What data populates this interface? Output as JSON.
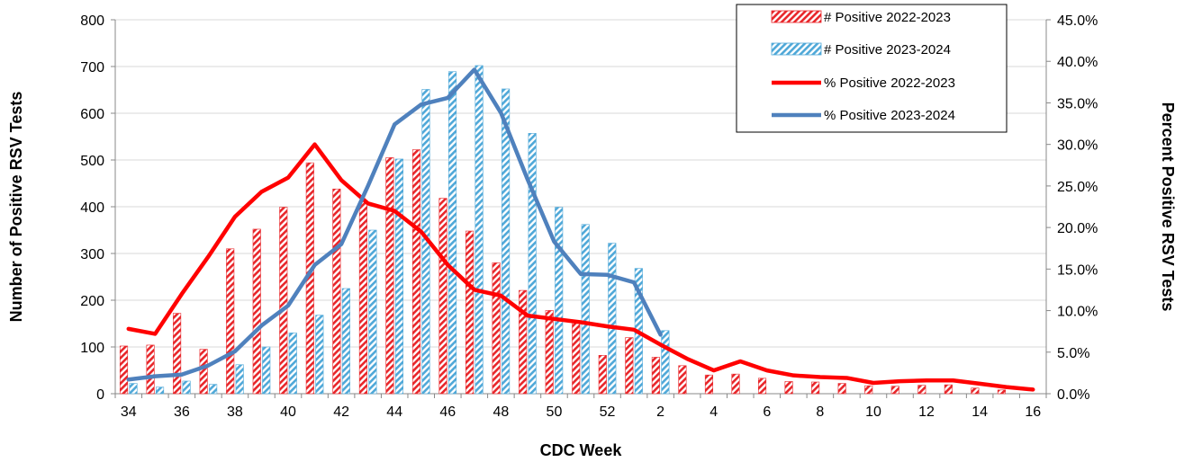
{
  "chart_data": {
    "type": "bar",
    "xlabel": "CDC Week",
    "ylabel": "Number of Positive RSV Tests",
    "y2label": "Percent Positive RSV Tests",
    "ylim": [
      0,
      800
    ],
    "y2lim": [
      0,
      45
    ],
    "y_ticks": [
      "0",
      "100",
      "200",
      "300",
      "400",
      "500",
      "600",
      "700",
      "800"
    ],
    "y2_ticks": [
      "0.0%",
      "5.0%",
      "10.0%",
      "15.0%",
      "20.0%",
      "25.0%",
      "30.0%",
      "35.0%",
      "40.0%",
      "45.0%"
    ],
    "grid": true,
    "legend_position": "top-right",
    "categories": [
      "34",
      "35",
      "36",
      "37",
      "38",
      "39",
      "40",
      "41",
      "42",
      "43",
      "44",
      "45",
      "46",
      "47",
      "48",
      "49",
      "50",
      "51",
      "52",
      "1",
      "2",
      "3",
      "4",
      "5",
      "6",
      "7",
      "8",
      "9",
      "10",
      "11",
      "12",
      "13",
      "14",
      "15",
      "16"
    ],
    "x_tick_labels": [
      "34",
      "",
      "36",
      "",
      "38",
      "",
      "40",
      "",
      "42",
      "",
      "44",
      "",
      "46",
      "",
      "48",
      "",
      "50",
      "",
      "52",
      "",
      "2",
      "",
      "4",
      "",
      "6",
      "",
      "8",
      "",
      "10",
      "",
      "12",
      "",
      "14",
      "",
      "16"
    ],
    "bar_series": [
      {
        "name": "# Positive 2022-2023",
        "color": "#e8262a",
        "values": [
          102,
          104,
          172,
          95,
          310,
          352,
          399,
          494,
          438,
          412,
          505,
          522,
          418,
          348,
          280,
          221,
          178,
          152,
          82,
          120,
          78,
          60,
          40,
          42,
          33,
          26,
          25,
          22,
          17,
          16,
          18,
          19,
          12,
          8,
          null
        ]
      },
      {
        "name": "# Positive 2023-2024",
        "color": "#4fa8d8",
        "values": [
          22,
          14,
          27,
          20,
          62,
          100,
          130,
          168,
          225,
          350,
          502,
          651,
          689,
          702,
          652,
          557,
          399,
          362,
          322,
          268,
          135,
          null,
          null,
          null,
          null,
          null,
          null,
          null,
          null,
          null,
          null,
          null,
          null,
          null,
          null
        ]
      }
    ],
    "line_series": [
      {
        "name": "% Positive 2022-2023",
        "color": "#ff0000",
        "values": [
          7.8,
          7.2,
          12.0,
          16.5,
          21.3,
          24.3,
          26.0,
          30.0,
          25.7,
          22.9,
          22.0,
          19.5,
          15.5,
          12.5,
          11.8,
          9.4,
          9.0,
          8.6,
          8.1,
          7.7,
          5.9,
          4.2,
          2.8,
          3.9,
          2.8,
          2.2,
          2.0,
          1.9,
          1.3,
          1.5,
          1.6,
          1.6,
          1.2,
          0.8,
          0.5
        ]
      },
      {
        "name": "% Positive 2023-2024",
        "color": "#4f81bd",
        "values": [
          1.7,
          2.1,
          2.3,
          3.4,
          5.1,
          8.2,
          10.6,
          15.5,
          18.0,
          25.0,
          32.4,
          34.8,
          35.6,
          39.0,
          33.8,
          25.8,
          18.3,
          14.4,
          14.3,
          13.4,
          7.1,
          null,
          null,
          null,
          null,
          null,
          null,
          null,
          null,
          null,
          null,
          null,
          null,
          null,
          null
        ]
      }
    ]
  }
}
